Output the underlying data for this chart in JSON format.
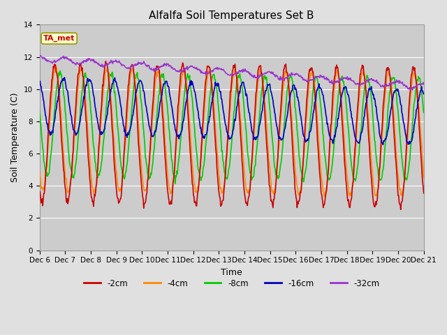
{
  "title": "Alfalfa Soil Temperatures Set B",
  "xlabel": "Time",
  "ylabel": "Soil Temperature (C)",
  "ylim": [
    0,
    14
  ],
  "yticks": [
    0,
    2,
    4,
    6,
    8,
    10,
    12,
    14
  ],
  "figure_bg": "#e0e0e0",
  "axes_bg": "#cccccc",
  "colors": {
    "-2cm": "#cc0000",
    "-4cm": "#ff8800",
    "-8cm": "#00cc00",
    "-16cm": "#0000bb",
    "-32cm": "#9933cc"
  },
  "ta_met_label": "TA_met",
  "ta_met_bg": "#ffffcc",
  "ta_met_border": "#999900",
  "ta_met_color": "#cc0000",
  "n_days": 15,
  "x_tick_labels": [
    "Dec 6",
    "Dec 7",
    "Dec 8",
    "Dec 9",
    "Dec 10",
    "Dec 11",
    "Dec 12",
    "Dec 13",
    "Dec 14",
    "Dec 15",
    "Dec 16",
    "Dec 17",
    "Dec 18",
    "Dec 19",
    "Dec 20",
    "Dec 21"
  ],
  "line_width": 1.2,
  "figsize": [
    6.4,
    4.8
  ],
  "dpi": 100
}
